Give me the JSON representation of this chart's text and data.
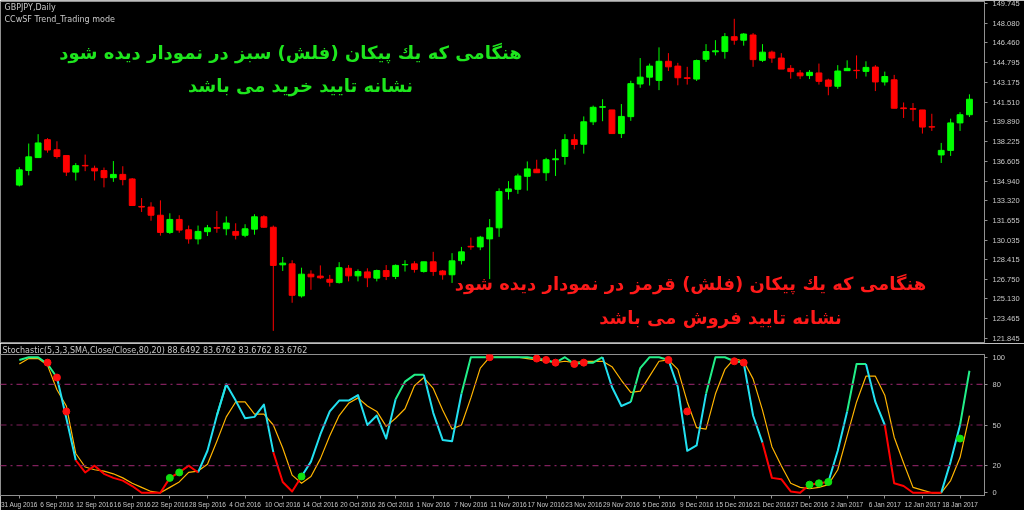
{
  "chart_data": [
    {
      "type": "candlestick",
      "title": "GBPJPY,Daily",
      "subtitle": "CCwSF Trend_Trading mode",
      "annotations": [
        "هنگامی که یك پیکان (فلش) سبز در نمودار دیده شود",
        "نشانه تایید خرید می باشد",
        "هنگامی که یك پیکان (فلش) قرمز در نمودار دیده شود",
        "نشانه تایید فروش می باشد"
      ],
      "categories": [
        null,
        null,
        null,
        null,
        null,
        null,
        null,
        null,
        null,
        null,
        null,
        null,
        null,
        null,
        null,
        null,
        null,
        null,
        null,
        null,
        null,
        null,
        null,
        null,
        null,
        null,
        null,
        null,
        null,
        null,
        null,
        null,
        null,
        null,
        null,
        null,
        null,
        null,
        null,
        null,
        null,
        null,
        null,
        null,
        null,
        null,
        null,
        null,
        null,
        null,
        null,
        null,
        null,
        null,
        null,
        null,
        null,
        null,
        null,
        null,
        null,
        null,
        null,
        null,
        null,
        null,
        null,
        null,
        null,
        null,
        null,
        null,
        null,
        null,
        null,
        null,
        null,
        null,
        null,
        null,
        null,
        null,
        null,
        null,
        null,
        null,
        null,
        null,
        null,
        null,
        null,
        null,
        null,
        null,
        null,
        null,
        null,
        null,
        null,
        null,
        null,
        null
      ],
      "ohlc": [
        [
          134.61,
          136.1,
          134.5,
          135.88
        ],
        [
          135.83,
          138.07,
          135.42,
          136.96
        ],
        [
          136.9,
          138.85,
          136.9,
          138.12
        ],
        [
          138.39,
          138.52,
          137.31,
          137.53
        ],
        [
          137.55,
          138.26,
          136.82,
          136.99
        ],
        [
          137.07,
          137.07,
          135.37,
          135.69
        ],
        [
          135.69,
          136.44,
          134.99,
          136.23
        ],
        [
          136.25,
          137.15,
          135.77,
          136.21
        ],
        [
          136.01,
          136.23,
          134.99,
          135.79
        ],
        [
          135.82,
          136.07,
          134.42,
          135.23
        ],
        [
          135.23,
          136.61,
          134.88,
          135.5
        ],
        [
          135.5,
          136.18,
          134.59,
          135.07
        ],
        [
          135.12,
          135.2,
          132.91,
          132.91
        ],
        [
          132.83,
          133.53,
          132.37,
          132.78
        ],
        [
          132.78,
          133.18,
          131.64,
          132.1
        ],
        [
          132.1,
          133.34,
          130.4,
          130.67
        ],
        [
          130.67,
          132.26,
          130.54,
          131.75
        ],
        [
          131.75,
          132.1,
          130.64,
          130.86
        ],
        [
          130.89,
          131.24,
          129.73,
          130.13
        ],
        [
          130.13,
          131.24,
          129.67,
          130.75
        ],
        [
          130.73,
          131.29,
          130.37,
          131.05
        ],
        [
          131.08,
          132.45,
          130.64,
          131.02
        ],
        [
          130.97,
          132.0,
          130.43,
          131.45
        ],
        [
          130.75,
          131.43,
          130.08,
          130.43
        ],
        [
          130.43,
          131.35,
          130.27,
          130.97
        ],
        [
          130.94,
          132.18,
          130.48,
          131.97
        ],
        [
          131.97,
          132.1,
          131.05,
          131.1
        ],
        [
          131.1,
          131.24,
          122.47,
          127.92
        ],
        [
          127.97,
          128.62,
          127.46,
          128.11
        ],
        [
          128.05,
          128.35,
          124.81,
          125.43
        ],
        [
          125.38,
          127.73,
          125.24,
          127.19
        ],
        [
          127.19,
          127.51,
          125.89,
          126.97
        ],
        [
          127.03,
          127.92,
          126.78,
          126.89
        ],
        [
          126.76,
          127.13,
          126.16,
          126.52
        ],
        [
          126.49,
          128.19,
          126.41,
          127.73
        ],
        [
          127.68,
          127.95,
          126.59,
          127.05
        ],
        [
          127.05,
          127.59,
          126.59,
          127.41
        ],
        [
          127.38,
          127.68,
          126.11,
          126.89
        ],
        [
          126.86,
          127.57,
          126.59,
          127.49
        ],
        [
          127.49,
          127.95,
          126.7,
          127.0
        ],
        [
          127.0,
          128.0,
          126.78,
          127.92
        ],
        [
          127.97,
          128.35,
          127.41,
          128.0
        ],
        [
          128.05,
          128.27,
          127.32,
          127.59
        ],
        [
          127.41,
          128.22,
          127.32,
          128.22
        ],
        [
          128.22,
          129.05,
          127.05,
          127.41
        ],
        [
          127.46,
          127.54,
          126.73,
          127.14
        ],
        [
          127.14,
          128.94,
          126.46,
          128.3
        ],
        [
          128.32,
          129.46,
          128.0,
          129.05
        ],
        [
          129.51,
          130.24,
          129.22,
          129.46
        ],
        [
          129.46,
          130.38,
          129.19,
          130.27
        ],
        [
          130.13,
          131.78,
          126.78,
          131.05
        ],
        [
          131.05,
          134.34,
          130.3,
          134.07
        ],
        [
          134.07,
          134.94,
          133.4,
          134.29
        ],
        [
          134.26,
          135.56,
          133.88,
          135.37
        ],
        [
          135.34,
          136.58,
          134.15,
          135.96
        ],
        [
          135.93,
          136.72,
          135.64,
          135.64
        ],
        [
          135.64,
          136.88,
          134.96,
          136.72
        ],
        [
          136.72,
          137.58,
          135.37,
          136.8
        ],
        [
          136.99,
          138.85,
          136.31,
          138.39
        ],
        [
          138.39,
          138.85,
          137.58,
          137.99
        ],
        [
          138.01,
          140.33,
          137.23,
          139.88
        ],
        [
          139.88,
          141.23,
          139.61,
          141.09
        ],
        [
          141.09,
          141.76,
          139.93,
          141.14
        ],
        [
          140.87,
          140.87,
          138.9,
          138.9
        ],
        [
          138.9,
          141.36,
          138.53,
          140.33
        ],
        [
          140.31,
          143.3,
          139.96,
          143.06
        ],
        [
          143.03,
          145.19,
          142.71,
          143.6
        ],
        [
          143.6,
          144.73,
          142.9,
          144.52
        ],
        [
          143.33,
          146.08,
          142.52,
          144.92
        ],
        [
          144.92,
          145.6,
          144.11,
          144.46
        ],
        [
          144.52,
          144.79,
          142.92,
          143.55
        ],
        [
          143.55,
          144.46,
          142.98,
          143.49
        ],
        [
          143.44,
          145.06,
          143.28,
          144.98
        ],
        [
          145.09,
          146.35,
          144.87,
          145.73
        ],
        [
          145.71,
          146.68,
          145.41,
          145.79
        ],
        [
          145.73,
          147.27,
          145.14,
          146.97
        ],
        [
          146.97,
          148.46,
          146.3,
          146.68
        ],
        [
          146.68,
          147.27,
          146.22,
          147.19
        ],
        [
          147.11,
          147.27,
          144.46,
          145.06
        ],
        [
          145.0,
          146.35,
          144.87,
          145.68
        ],
        [
          145.68,
          145.81,
          144.79,
          145.19
        ],
        [
          145.19,
          145.6,
          144.27,
          144.27
        ],
        [
          144.33,
          144.6,
          143.47,
          144.06
        ],
        [
          143.95,
          144.19,
          143.44,
          143.71
        ],
        [
          143.73,
          144.19,
          143.44,
          144.0
        ],
        [
          143.95,
          144.73,
          142.98,
          143.25
        ],
        [
          143.36,
          143.47,
          142.09,
          142.84
        ],
        [
          142.84,
          144.6,
          142.63,
          144.11
        ],
        [
          144.14,
          145.0,
          144.14,
          144.33
        ],
        [
          144.17,
          145.41,
          143.47,
          144.14
        ],
        [
          144.08,
          144.92,
          143.65,
          144.41
        ],
        [
          144.44,
          144.6,
          142.44,
          143.2
        ],
        [
          143.2,
          144.06,
          142.9,
          143.65
        ],
        [
          143.38,
          143.79,
          141.01,
          141.01
        ],
        [
          141.04,
          141.49,
          140.2,
          140.98
        ],
        [
          140.98,
          141.44,
          139.93,
          140.93
        ],
        [
          140.87,
          140.87,
          138.9,
          139.44
        ],
        [
          139.47,
          140.55,
          139.12,
          139.44
        ],
        [
          137.12,
          138.12,
          136.45,
          137.5
        ],
        [
          137.5,
          140.14,
          137.04,
          139.79
        ],
        [
          139.79,
          140.68,
          139.12,
          140.47
        ],
        [
          140.47,
          142.17,
          140.28,
          141.76
        ]
      ],
      "ylim": [
        121.5,
        149.9
      ],
      "yticks": [
        {
          "value": 121.845,
          "label": "121.845"
        },
        {
          "value": 123.465,
          "label": "123.465"
        },
        {
          "value": 125.13,
          "label": "125.130"
        },
        {
          "value": 126.75,
          "label": "126.750"
        },
        {
          "value": 128.415,
          "label": "128.415"
        },
        {
          "value": 130.035,
          "label": "130.035"
        },
        {
          "value": 131.655,
          "label": "131.655"
        },
        {
          "value": 133.32,
          "label": "133.320"
        },
        {
          "value": 134.94,
          "label": "134.940"
        },
        {
          "value": 136.605,
          "label": "136.605"
        },
        {
          "value": 138.225,
          "label": "138.225"
        },
        {
          "value": 139.89,
          "label": "139.890"
        },
        {
          "value": 141.51,
          "label": "141.510"
        },
        {
          "value": 143.175,
          "label": "143.175"
        },
        {
          "value": 144.795,
          "label": "144.795"
        },
        {
          "value": 146.46,
          "label": "146.460"
        },
        {
          "value": 148.08,
          "label": "148.080"
        },
        {
          "value": 149.745,
          "label": "149.745"
        }
      ],
      "tick_labels": "y"
    },
    {
      "type": "line",
      "title": "Stochastic(5,3,3,SMA,Close/Close,80,20) 88.6492 83.6762 83.6762 83.6762",
      "categories": [
        "31 Aug 2016",
        null,
        null,
        null,
        "6 Sep 2016",
        null,
        null,
        null,
        "12 Sep 2016",
        null,
        null,
        null,
        "16 Sep 2016",
        null,
        null,
        null,
        "22 Sep 2016",
        null,
        null,
        null,
        "28 Sep 2016",
        null,
        null,
        null,
        "4 Oct 2016",
        null,
        null,
        null,
        "10 Oct 2016",
        null,
        null,
        null,
        "14 Oct 2016",
        null,
        null,
        null,
        "20 Oct 2016",
        null,
        null,
        null,
        "26 Oct 2016",
        null,
        null,
        null,
        "1 Nov 2016",
        null,
        null,
        null,
        "7 Nov 2016",
        null,
        null,
        null,
        "11 Nov 2016",
        null,
        null,
        null,
        "17 Nov 2016",
        null,
        null,
        null,
        "23 Nov 2016",
        null,
        null,
        null,
        "29 Nov 2016",
        null,
        null,
        null,
        "5 Dec 2016",
        null,
        null,
        null,
        "9 Dec 2016",
        null,
        null,
        null,
        "15 Dec 2016",
        null,
        null,
        null,
        "21 Dec 2016",
        null,
        null,
        null,
        "27 Dec 2016",
        null,
        null,
        null,
        "2 Jan 2017",
        null,
        null,
        null,
        "6 Jan 2017",
        null,
        null,
        null,
        "12 Jan 2017",
        null,
        null,
        null,
        "18 Jan 2017",
        null
      ],
      "series": [
        {
          "type": "line",
          "color": "#ffb400",
          "values": [
            95,
            99,
            99,
            94,
            76,
            64,
            29,
            19,
            17,
            16,
            14,
            11,
            7,
            4,
            1,
            0,
            4,
            8,
            15,
            16,
            21,
            38,
            56,
            67,
            67,
            58,
            58,
            50,
            33,
            13,
            7,
            12,
            25,
            42,
            57,
            66,
            70,
            64,
            60,
            49,
            55,
            62,
            79,
            85,
            77,
            61,
            47,
            50,
            70,
            92,
            100,
            100,
            100,
            100,
            99,
            98,
            97,
            96,
            97,
            96,
            97,
            97,
            97,
            93,
            83,
            74,
            75,
            86,
            97,
            98,
            91,
            67,
            48,
            47,
            73,
            91,
            99,
            97,
            84,
            61,
            34,
            20,
            7,
            4,
            3,
            4,
            6,
            17,
            42,
            67,
            86,
            86,
            72,
            41,
            22,
            4,
            2,
            0,
            0,
            9,
            26,
            57
          ]
        },
        {
          "type": "line",
          "color": "#22ee88",
          "values": [
            98,
            100,
            100,
            95,
            85,
            null,
            null,
            null,
            null,
            null,
            null,
            null,
            null,
            null,
            null,
            null,
            null,
            null,
            null,
            null,
            null,
            57,
            80,
            null,
            null,
            null,
            null,
            null,
            null,
            null,
            null,
            null,
            null,
            null,
            null,
            null,
            null,
            null,
            null,
            null,
            69,
            82,
            87,
            87,
            null,
            null,
            null,
            73,
            100,
            100,
            100,
            100,
            100,
            100,
            100,
            99,
            98,
            96,
            100,
            95,
            96,
            96,
            100,
            null,
            null,
            67,
            92,
            100,
            100,
            98,
            null,
            null,
            null,
            73,
            100,
            100,
            97,
            96,
            null,
            null,
            null,
            null,
            null,
            null,
            null,
            null,
            null,
            null,
            60,
            95,
            95,
            null,
            null,
            null,
            null,
            null,
            null,
            null,
            null,
            null,
            50,
            90
          ]
        },
        {
          "type": "line",
          "color": "#22e0f0",
          "values": [
            null,
            null,
            null,
            null,
            85,
            55,
            24,
            null,
            null,
            null,
            null,
            null,
            null,
            null,
            null,
            null,
            null,
            null,
            null,
            15,
            31,
            57,
            80,
            68,
            55,
            56,
            65,
            30,
            null,
            null,
            12,
            23,
            43,
            60,
            68,
            68,
            72,
            50,
            57,
            40,
            69,
            null,
            null,
            87,
            59,
            39,
            38,
            73,
            null,
            null,
            null,
            null,
            null,
            null,
            null,
            null,
            null,
            null,
            null,
            null,
            null,
            null,
            100,
            78,
            64,
            67,
            null,
            null,
            null,
            98,
            78,
            31,
            35,
            73,
            null,
            null,
            null,
            96,
            57,
            37,
            null,
            null,
            null,
            null,
            null,
            null,
            8,
            31,
            60,
            null,
            95,
            67,
            50,
            null,
            null,
            null,
            null,
            null,
            0,
            23,
            50,
            null
          ]
        },
        {
          "type": "line",
          "color": "#ff0000",
          "values": [
            null,
            null,
            null,
            null,
            null,
            null,
            24,
            15,
            20,
            14,
            11,
            9,
            5,
            0,
            0,
            0,
            11,
            15,
            20,
            15,
            null,
            null,
            null,
            null,
            null,
            null,
            null,
            30,
            8,
            1,
            12,
            null,
            null,
            null,
            null,
            null,
            null,
            null,
            null,
            null,
            null,
            null,
            null,
            null,
            null,
            null,
            null,
            null,
            null,
            null,
            null,
            null,
            null,
            null,
            null,
            null,
            null,
            null,
            null,
            null,
            null,
            null,
            null,
            null,
            null,
            null,
            null,
            null,
            null,
            null,
            null,
            null,
            null,
            null,
            null,
            null,
            null,
            null,
            null,
            37,
            11,
            10,
            1,
            0,
            6,
            7,
            8,
            null,
            null,
            null,
            null,
            null,
            50,
            7,
            5,
            0,
            0,
            0,
            0,
            null,
            null,
            null
          ]
        },
        {
          "type": "scatter",
          "marker": "circle",
          "color": "#ff1010",
          "values": [
            null,
            null,
            null,
            96,
            85,
            60,
            null,
            null,
            null,
            null,
            null,
            null,
            null,
            null,
            null,
            null,
            null,
            null,
            null,
            null,
            null,
            null,
            null,
            null,
            null,
            null,
            null,
            null,
            null,
            null,
            null,
            null,
            null,
            null,
            null,
            null,
            null,
            null,
            null,
            null,
            null,
            null,
            null,
            null,
            null,
            null,
            null,
            null,
            null,
            null,
            100,
            null,
            null,
            null,
            null,
            99,
            98,
            96,
            null,
            95,
            96,
            null,
            null,
            null,
            null,
            null,
            null,
            null,
            null,
            98,
            null,
            60,
            null,
            null,
            null,
            null,
            97,
            96,
            null,
            null,
            null,
            null,
            null,
            null,
            null,
            null,
            null,
            null,
            null,
            null,
            null,
            null,
            null,
            null,
            null,
            null,
            null,
            null,
            null,
            null,
            null,
            null
          ]
        },
        {
          "type": "scatter",
          "marker": "circle",
          "color": "#10e010",
          "values": [
            null,
            null,
            null,
            null,
            null,
            null,
            null,
            null,
            null,
            null,
            null,
            null,
            null,
            null,
            null,
            null,
            11,
            15,
            null,
            null,
            null,
            null,
            null,
            null,
            null,
            null,
            null,
            null,
            null,
            null,
            12,
            null,
            null,
            null,
            null,
            null,
            null,
            null,
            null,
            null,
            null,
            null,
            null,
            null,
            null,
            null,
            null,
            null,
            null,
            null,
            null,
            null,
            null,
            null,
            null,
            null,
            null,
            null,
            null,
            null,
            null,
            null,
            null,
            null,
            null,
            null,
            null,
            null,
            null,
            null,
            null,
            null,
            null,
            null,
            null,
            null,
            null,
            null,
            null,
            null,
            null,
            null,
            null,
            null,
            6,
            7,
            8,
            null,
            null,
            null,
            null,
            null,
            null,
            null,
            null,
            null,
            null,
            null,
            null,
            null,
            40,
            null
          ]
        }
      ],
      "ylim": [
        -2,
        102
      ],
      "yticks": [
        0,
        20,
        50,
        80,
        100
      ],
      "ref_lines": [
        {
          "axis": "y",
          "value": 80,
          "color": "#80205c",
          "line_style": "dashdot"
        },
        {
          "axis": "y",
          "value": 50,
          "color": "#80205c",
          "line_style": "dashdot"
        },
        {
          "axis": "y",
          "value": 20,
          "color": "#80205c",
          "line_style": "dashdot"
        }
      ]
    }
  ]
}
